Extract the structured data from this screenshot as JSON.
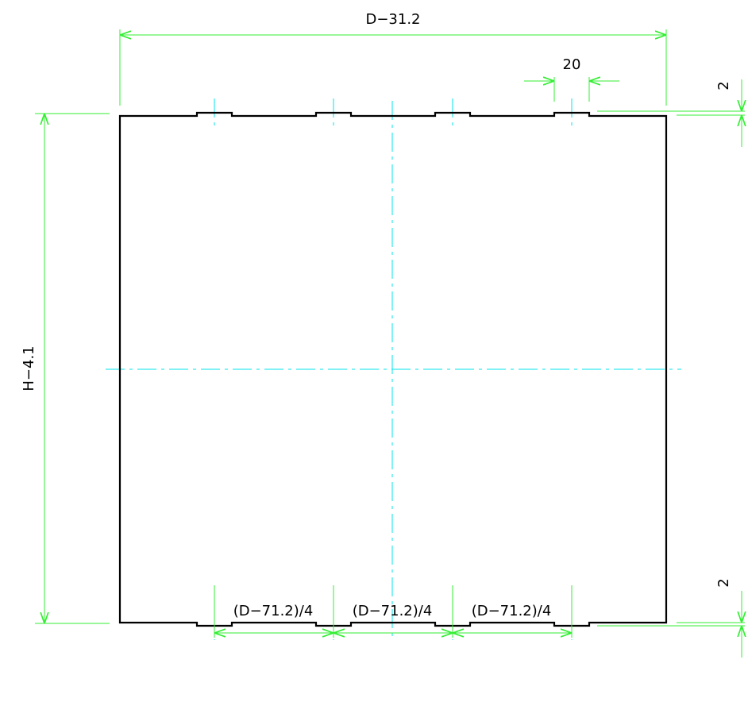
{
  "drawing": {
    "colors": {
      "outline": "#000000",
      "dimension": "#33ee33",
      "centerline": "#00e5ee"
    },
    "dimensions": {
      "total_width": "D−31.2",
      "notch_width": "20",
      "height": "H−4.1",
      "notch_depth_top": "2",
      "notch_depth_bottom": "2",
      "spacing_1": "(D−71.2)/4",
      "spacing_2": "(D−71.2)/4",
      "spacing_3": "(D−71.2)/4"
    }
  }
}
